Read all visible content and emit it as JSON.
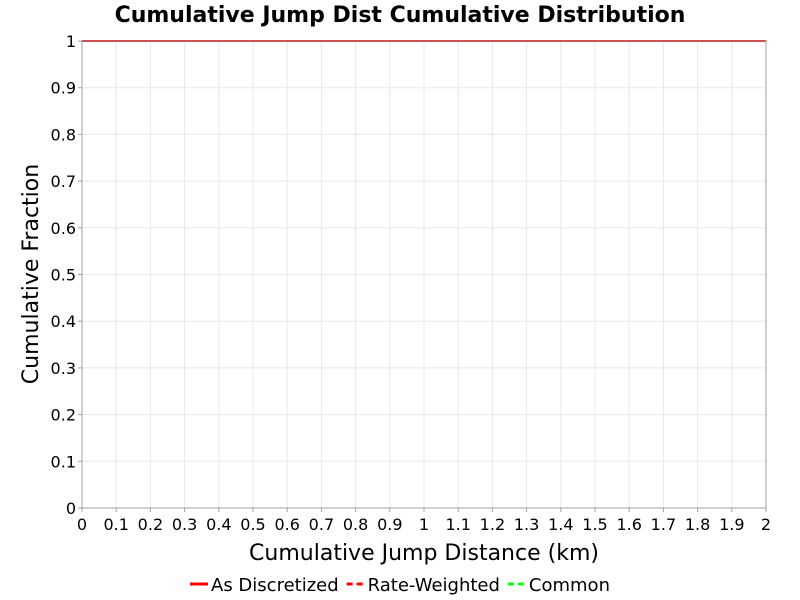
{
  "chart_data": {
    "type": "line",
    "title": "Cumulative Jump Dist Cumulative Distribution",
    "xlabel": "Cumulative Jump Distance (km)",
    "ylabel": "Cumulative Fraction",
    "xlim": [
      0,
      2
    ],
    "ylim": [
      0,
      1
    ],
    "x_ticks": [
      "0",
      "0.1",
      "0.2",
      "0.3",
      "0.4",
      "0.5",
      "0.6",
      "0.7",
      "0.8",
      "0.9",
      "1",
      "1.1",
      "1.2",
      "1.3",
      "1.4",
      "1.5",
      "1.6",
      "1.7",
      "1.8",
      "1.9",
      "2"
    ],
    "y_ticks": [
      "0",
      "0.1",
      "0.2",
      "0.3",
      "0.4",
      "0.5",
      "0.6",
      "0.7",
      "0.8",
      "0.9",
      "1"
    ],
    "grid": true,
    "legend_position": "bottom",
    "series": [
      {
        "name": "As Discretized",
        "color": "#ff0000",
        "style": "solid",
        "x": [
          0,
          2
        ],
        "y": [
          1,
          1
        ]
      },
      {
        "name": "Rate-Weighted",
        "color": "#ff0000",
        "style": "dashed",
        "x": [
          0,
          2
        ],
        "y": [
          1,
          1
        ]
      },
      {
        "name": "Common",
        "color": "#00ff00",
        "style": "dashed",
        "x": [
          0,
          2
        ],
        "y": [
          1,
          1
        ]
      }
    ]
  }
}
